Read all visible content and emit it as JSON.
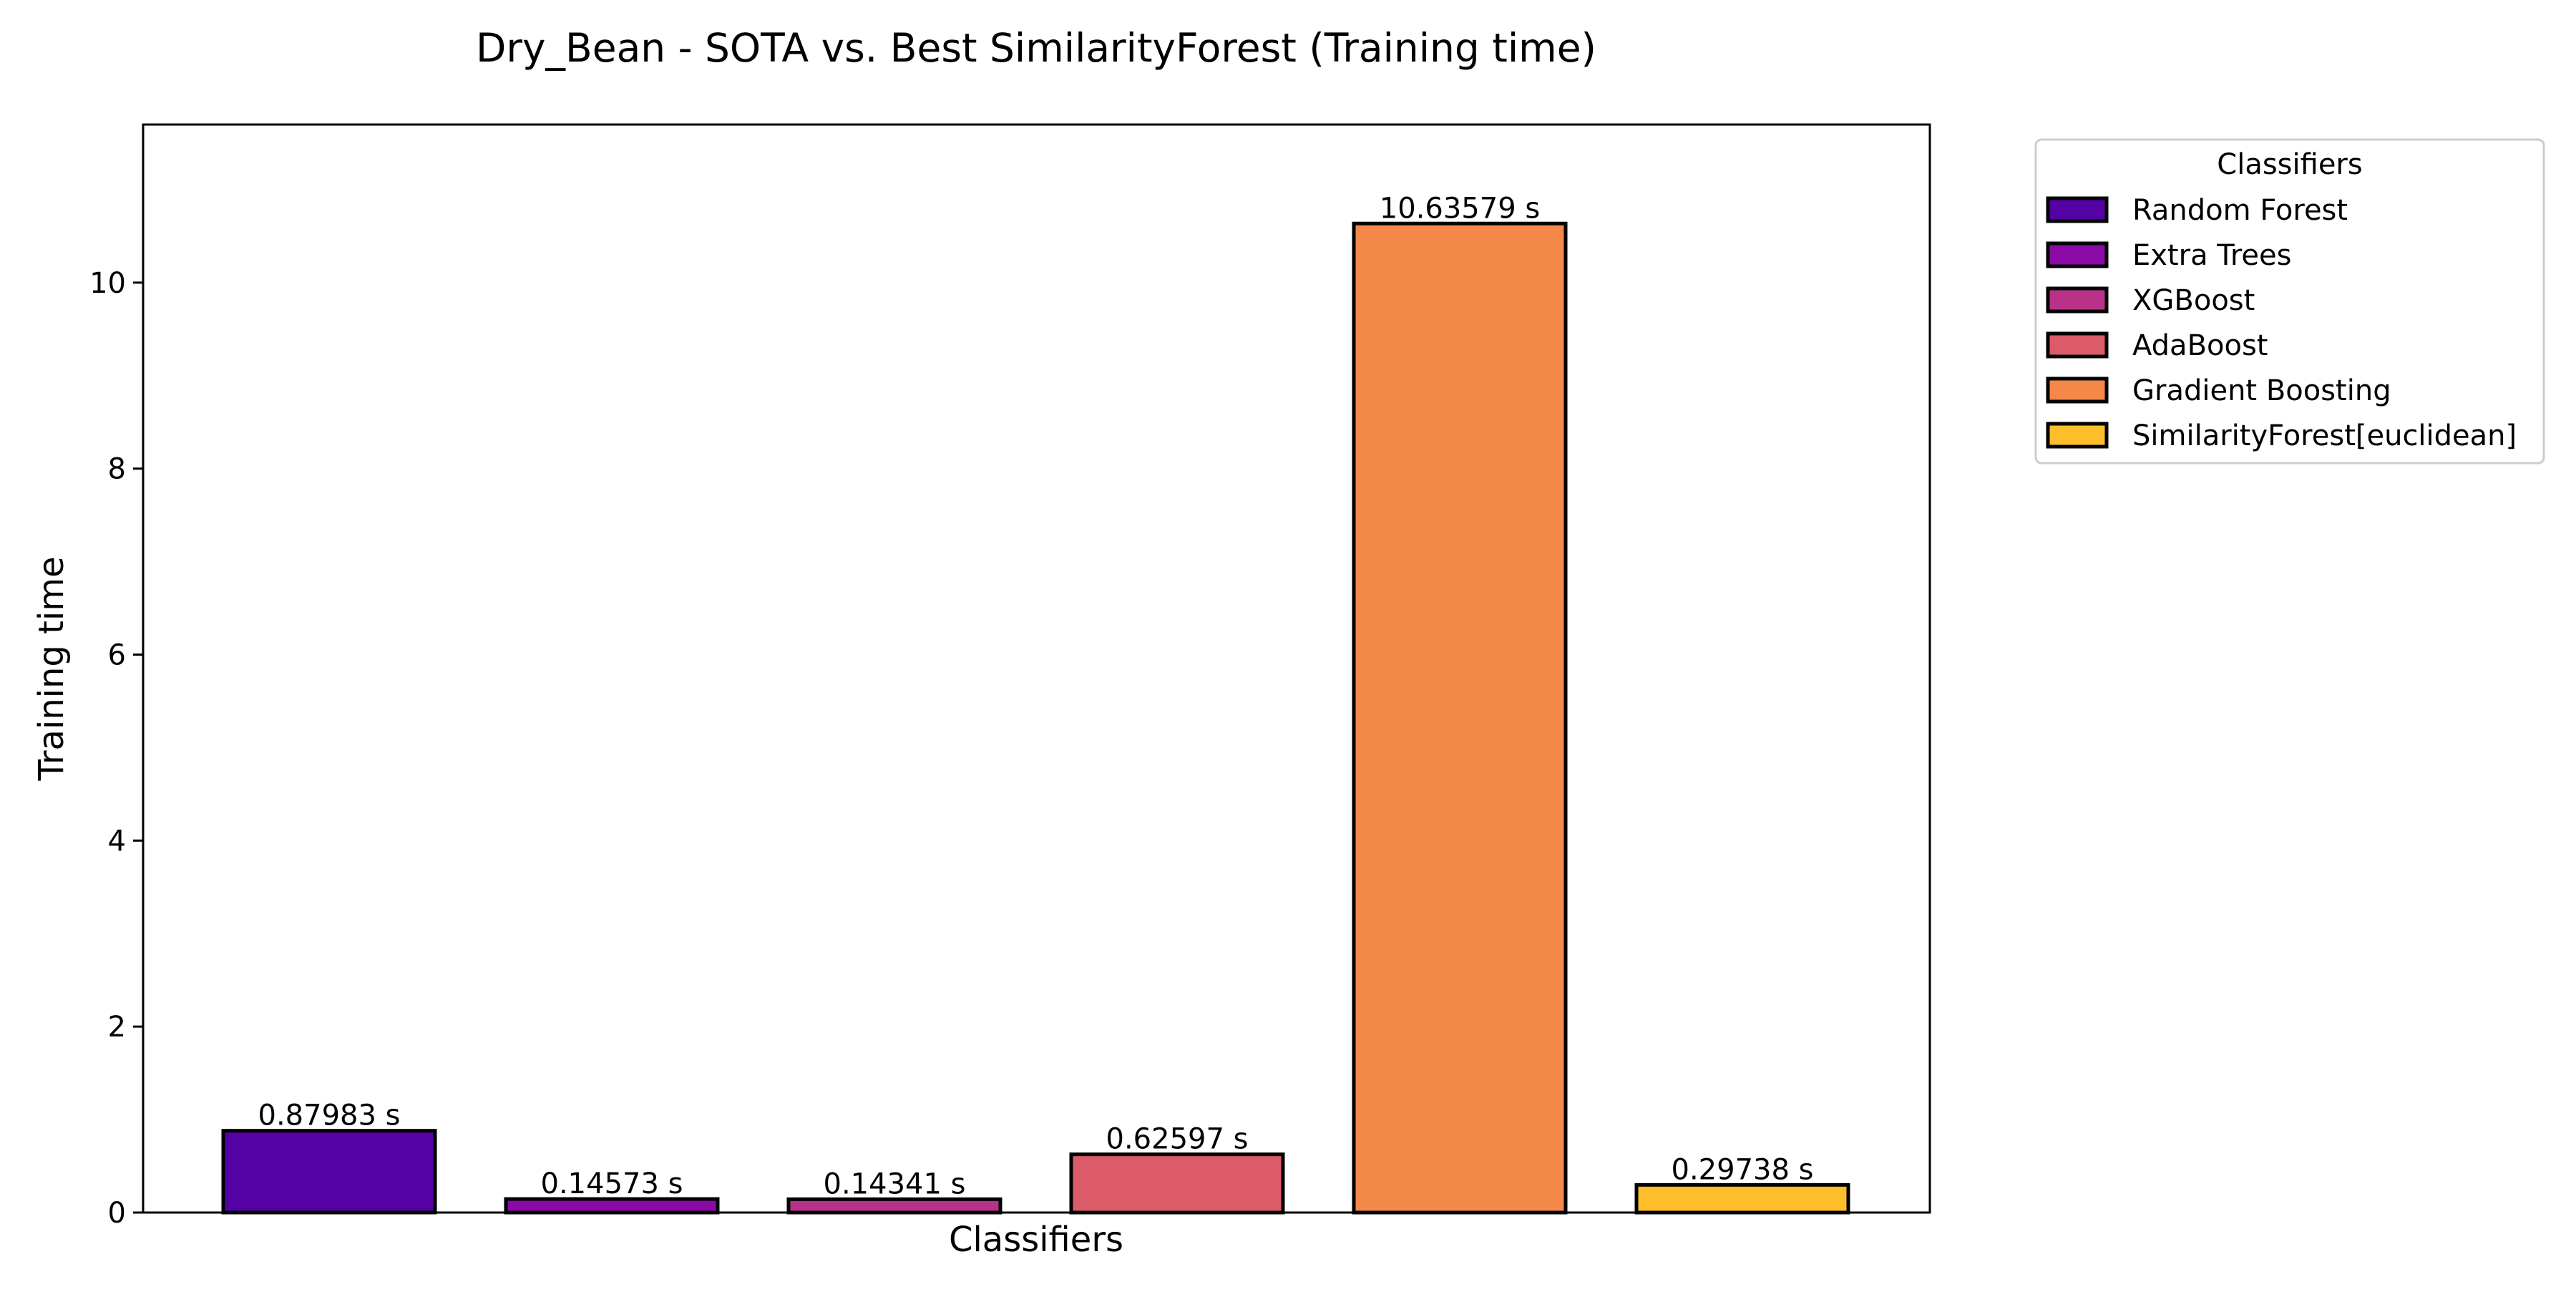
{
  "chart_data": {
    "type": "bar",
    "title": "Dry_Bean - SOTA vs. Best SimilarityForest (Training time)",
    "xlabel": "Classifiers",
    "ylabel": "Training time",
    "ylim": [
      0,
      11.7
    ],
    "yticks": [
      0,
      2,
      4,
      6,
      8,
      10
    ],
    "grid": false,
    "legend": {
      "title": "Classifiers",
      "placement": "outside-top-right"
    },
    "categories": [
      "Random Forest",
      "Extra Trees",
      "XGBoost",
      "AdaBoost",
      "Gradient Boosting",
      "SimilarityForest[euclidean]"
    ],
    "values": [
      0.87983,
      0.14573,
      0.14341,
      0.62597,
      10.63579,
      0.29738
    ],
    "value_labels": [
      "0.87983 s",
      "0.14573 s",
      "0.14341 s",
      "0.62597 s",
      "10.63579 s",
      "0.29738 s"
    ],
    "colors": [
      "#5402a3",
      "#8b0aa5",
      "#b93289",
      "#db5c68",
      "#f48849",
      "#febd2a"
    ]
  }
}
